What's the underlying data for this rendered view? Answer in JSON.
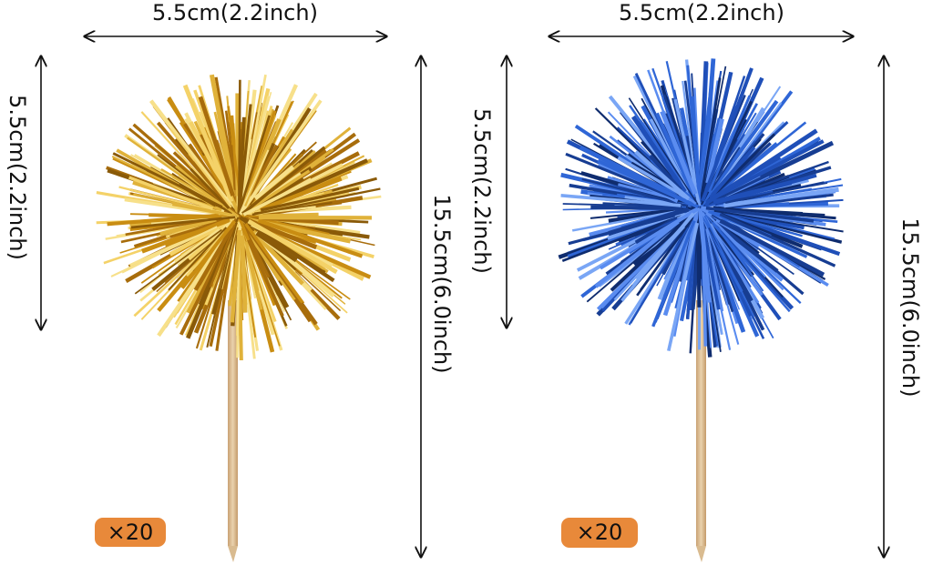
{
  "items": [
    {
      "width": "5.5cm(2.2inch)",
      "head_height": "5.5cm(2.2inch)",
      "total_height": "15.5cm(6.0inch)",
      "quantity": "×20"
    },
    {
      "width": "5.5cm(2.2inch)",
      "head_height": "5.5cm(2.2inch)",
      "total_height": "15.5cm(6.0inch)",
      "quantity": "×20"
    }
  ]
}
